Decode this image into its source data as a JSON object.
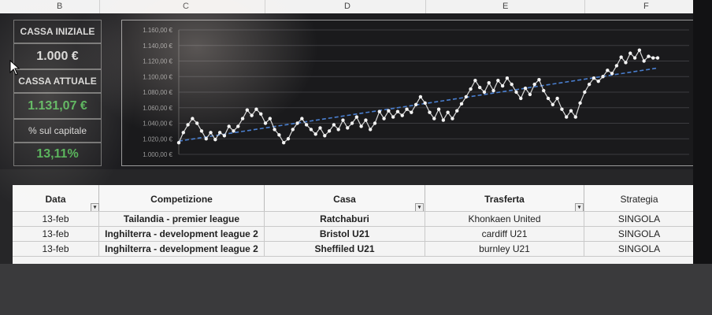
{
  "columns": [
    "B",
    "C",
    "D",
    "E",
    "F"
  ],
  "stats": {
    "cassa_iniziale_label": "CASSA INIZIALE",
    "cassa_iniziale_value": "1.000 €",
    "cassa_attuale_label": "CASSA ATTUALE",
    "cassa_attuale_value": "1.131,07 €",
    "capitale_label": "% sul capitale",
    "capitale_value": "13,11%"
  },
  "chart_data": {
    "type": "line",
    "title": "",
    "xlabel": "",
    "ylabel": "",
    "ylim": [
      1000,
      1160
    ],
    "ytick_labels": [
      "1.160,00 €",
      "1.140,00 €",
      "1.120,00 €",
      "1.100,00 €",
      "1.080,00 €",
      "1.060,00 €",
      "1.040,00 €",
      "1.020,00 €",
      "1.000,00 €"
    ],
    "yticks": [
      1160,
      1140,
      1120,
      1100,
      1080,
      1060,
      1040,
      1020,
      1000
    ],
    "grid": true,
    "legend": "none",
    "series": [
      {
        "values": [
          1015,
          1028,
          1038,
          1046,
          1040,
          1030,
          1020,
          1028,
          1019,
          1028,
          1024,
          1036,
          1030,
          1036,
          1046,
          1057,
          1050,
          1058,
          1052,
          1040,
          1046,
          1032,
          1025,
          1015,
          1020,
          1032,
          1040,
          1046,
          1038,
          1032,
          1026,
          1034,
          1024,
          1030,
          1038,
          1032,
          1044,
          1034,
          1040,
          1048,
          1036,
          1044,
          1032,
          1040,
          1055,
          1046,
          1056,
          1048,
          1055,
          1050,
          1058,
          1054,
          1064,
          1074,
          1066,
          1054,
          1046,
          1058,
          1044,
          1054,
          1046,
          1056,
          1065,
          1074,
          1084,
          1095,
          1086,
          1080,
          1092,
          1082,
          1095,
          1088,
          1098,
          1090,
          1080,
          1072,
          1085,
          1077,
          1090,
          1096,
          1082,
          1072,
          1064,
          1072,
          1058,
          1048,
          1056,
          1048,
          1066,
          1080,
          1090,
          1098,
          1094,
          1100,
          1108,
          1104,
          1114,
          1125,
          1118,
          1130,
          1124,
          1134,
          1120,
          1126,
          1124,
          1124
        ],
        "color": "#ffffff"
      },
      {
        "type": "trendline",
        "values": [
          1017,
          1111
        ],
        "color": "#4a7fd0"
      }
    ]
  },
  "table": {
    "headers": [
      "Data",
      "Competizione",
      "Casa",
      "Trasferta",
      "Strategia"
    ],
    "rows": [
      [
        "13-feb",
        "Tailandia - premier league",
        "Ratchaburi",
        "Khonkaen United",
        "SINGOLA"
      ],
      [
        "13-feb",
        "Inghilterra - development league 2",
        "Bristol U21",
        "cardiff U21",
        "SINGOLA"
      ],
      [
        "13-feb",
        "Inghilterra - development league 2",
        "Sheffiled U21",
        "burnley U21",
        "SINGOLA"
      ]
    ]
  },
  "colors": {
    "positive": "#4caf50",
    "trendline": "#4a7fd0",
    "band": "#1d1d20"
  }
}
